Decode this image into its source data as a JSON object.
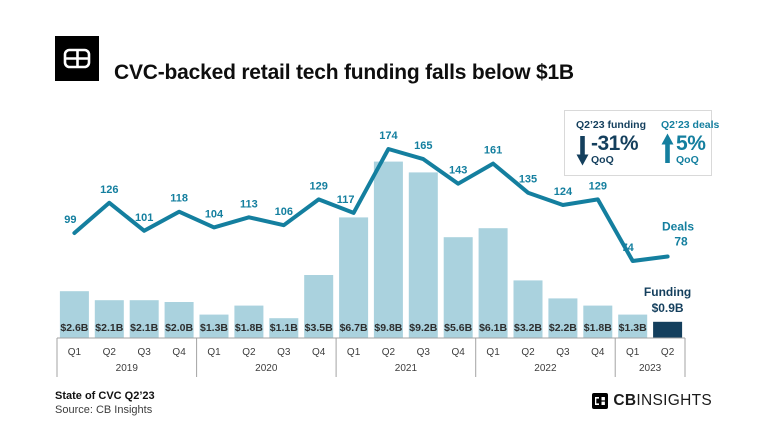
{
  "header": {
    "title": "CVC-backed retail tech funding falls below $1B"
  },
  "stats_box": {
    "funding": {
      "label": "Q2’23 funding",
      "value": "-31%",
      "sub": "QoQ",
      "direction": "down",
      "color": "#143f5d"
    },
    "deals": {
      "label": "Q2’23 deals",
      "value": "5%",
      "sub": "QoQ",
      "direction": "up",
      "color": "#147f9f"
    }
  },
  "chart_data": {
    "type": "bar+line",
    "title": "CVC-backed retail tech funding falls below $1B",
    "x_groups": [
      {
        "year": "2019",
        "quarters": [
          "Q1",
          "Q2",
          "Q3",
          "Q4"
        ]
      },
      {
        "year": "2020",
        "quarters": [
          "Q1",
          "Q2",
          "Q3",
          "Q4"
        ]
      },
      {
        "year": "2021",
        "quarters": [
          "Q1",
          "Q2",
          "Q3",
          "Q4"
        ]
      },
      {
        "year": "2022",
        "quarters": [
          "Q1",
          "Q2",
          "Q3",
          "Q4"
        ]
      },
      {
        "year": "2023",
        "quarters": [
          "Q1",
          "Q2"
        ]
      }
    ],
    "series": [
      {
        "name": "Funding",
        "type": "bar",
        "unit": "$B",
        "values": [
          2.6,
          2.1,
          2.1,
          2.0,
          1.3,
          1.8,
          1.1,
          3.5,
          6.7,
          9.8,
          9.2,
          5.6,
          6.1,
          3.2,
          2.2,
          1.8,
          1.3,
          0.9
        ],
        "labels": [
          "$2.6B",
          "$2.1B",
          "$2.1B",
          "$2.0B",
          "$1.3B",
          "$1.8B",
          "$1.1B",
          "$3.5B",
          "$6.7B",
          "$9.8B",
          "$9.2B",
          "$5.6B",
          "$6.1B",
          "$3.2B",
          "$2.2B",
          "$1.8B",
          "$1.3B",
          "$0.9B"
        ],
        "color": "#aad2de",
        "highlight_last_color": "#143f5d",
        "label_color": "#2e2e2e"
      },
      {
        "name": "Deals",
        "type": "line",
        "values": [
          99,
          126,
          101,
          118,
          104,
          113,
          106,
          129,
          117,
          174,
          165,
          143,
          161,
          135,
          124,
          129,
          74,
          78
        ],
        "color": "#147f9f"
      }
    ],
    "annotations": [
      {
        "id": "deals",
        "lines": [
          "Deals",
          "78"
        ],
        "color": "#147f9f"
      },
      {
        "id": "funding",
        "lines": [
          "Funding",
          "$0.9B"
        ],
        "color": "#143f5d"
      }
    ],
    "axis_color": "#a3a3a3",
    "tick_color": "#3d3d3d",
    "grid": false,
    "legend_position": "none"
  },
  "footer": {
    "report": "State of CVC Q2’23",
    "source": "Source: CB Insights",
    "brand_cb": "CB",
    "brand_insights": "INSIGHTS"
  }
}
